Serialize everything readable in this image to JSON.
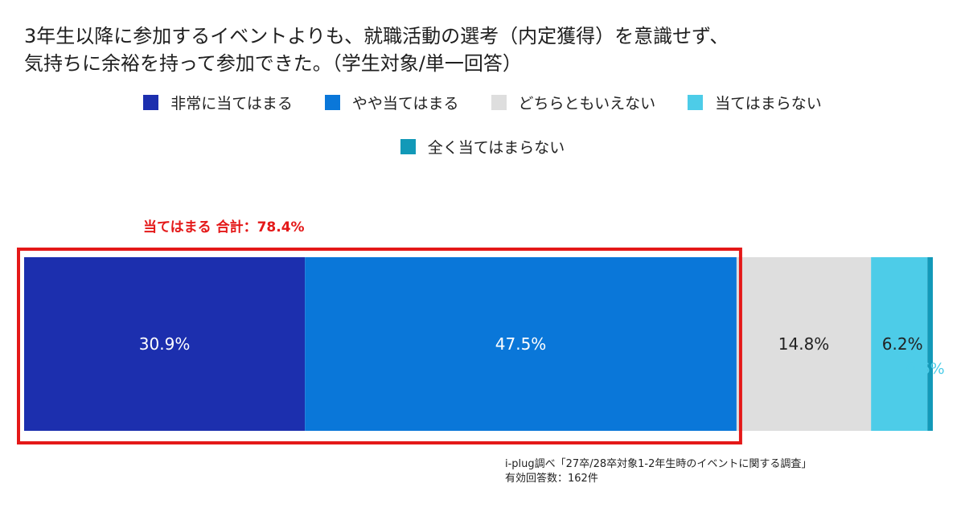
{
  "title_lines": [
    "3年生以降に参加するイベントよりも、就職活動の選考（内定獲得）を意識せず、",
    "気持ちに余裕を持って参加できた。（学生対象/単一回答）"
  ],
  "chart_data": {
    "type": "bar",
    "orientation": "horizontal-stacked-100",
    "title": "3年生以降に参加するイベントよりも、就職活動の選考（内定獲得）を意識せず、気持ちに余裕を持って参加できた。（学生対象/単一回答）",
    "series": [
      {
        "name": "非常に当てはまる",
        "values": [
          30.9
        ],
        "color": "#1c2fae",
        "label": "30.9%"
      },
      {
        "name": "やや当てはまる",
        "values": [
          47.5
        ],
        "color": "#0a77d9",
        "label": "47.5%"
      },
      {
        "name": "どちらともいえない",
        "values": [
          14.8
        ],
        "color": "#dedede",
        "label": "14.8%"
      },
      {
        "name": "当てはまらない",
        "values": [
          6.2
        ],
        "color": "#4dcce8",
        "label": "6.2%"
      },
      {
        "name": "全く当てはまらない",
        "values": [
          0.6
        ],
        "color": "#1299b8",
        "label": "0.6%"
      }
    ],
    "legend_position": "top",
    "highlight": {
      "label": "当てはまる 合計：78.4%",
      "covers_series": [
        "非常に当てはまる",
        "やや当てはまる"
      ],
      "value": 78.4,
      "color": "#e41818"
    }
  },
  "footnote": {
    "line1": "i-plug調べ「27卒/28卒対象1-2年生時のイベントに関する調査」",
    "line2": "有効回答数：162件"
  }
}
